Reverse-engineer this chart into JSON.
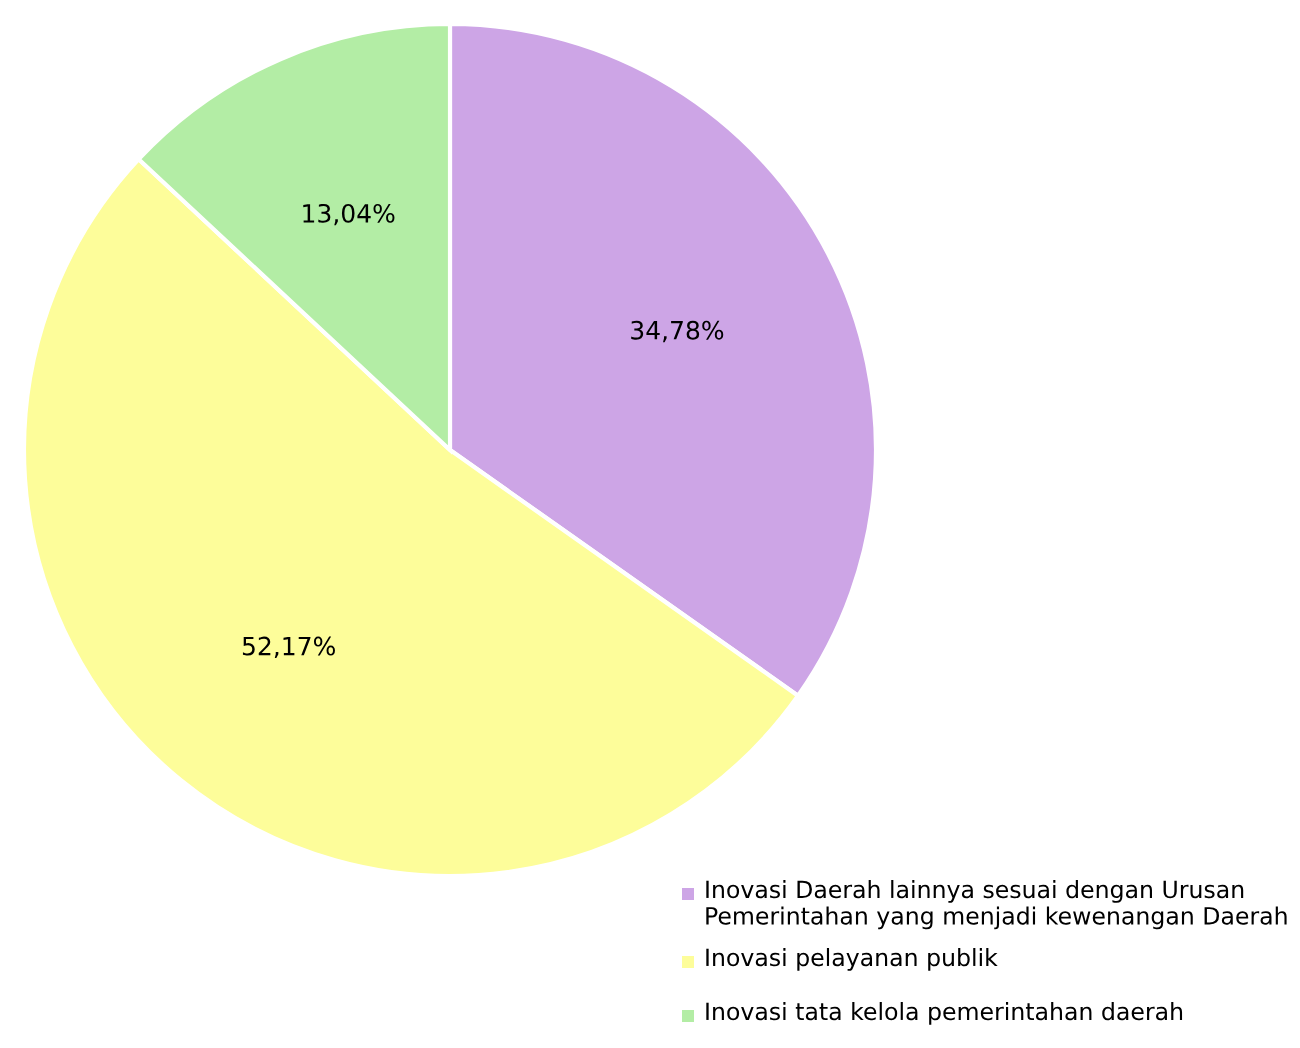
{
  "chart_data": {
    "type": "pie",
    "categories": [
      "Inovasi Daerah lainnya sesuai dengan Urusan Pemerintahan yang menjadi kewenangan Daerah",
      "Inovasi pelayanan publik",
      "Inovasi tata kelola pemerintahan daerah"
    ],
    "values": [
      34.78,
      52.17,
      13.04
    ],
    "colors": [
      "#cda5e6",
      "#fdfd9a",
      "#b3eda5"
    ],
    "value_labels": [
      "34,78%",
      "52,17%",
      "13,04%"
    ],
    "legend": "bottom right"
  }
}
